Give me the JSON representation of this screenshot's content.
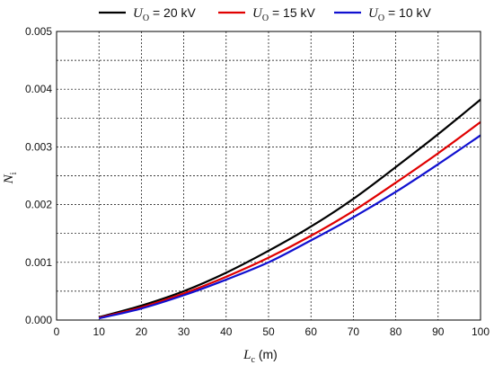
{
  "chart_data": {
    "type": "line",
    "title": "",
    "xlabel": {
      "main": "L",
      "sub": "c",
      "unit": " (m)"
    },
    "ylabel": {
      "main": "N",
      "sub": "i"
    },
    "xlim": [
      0,
      100
    ],
    "ylim": [
      0,
      0.005
    ],
    "xticks": [
      0,
      10,
      20,
      30,
      40,
      50,
      60,
      70,
      80,
      90,
      100
    ],
    "yticks": [
      0.0,
      0.001,
      0.002,
      0.003,
      0.004,
      0.005
    ],
    "ytick_labels": [
      "0.000",
      "0.001",
      "0.002",
      "0.003",
      "0.004",
      "0.005"
    ],
    "grid": true,
    "legend_position": "top",
    "x": [
      10,
      20,
      30,
      40,
      50,
      60,
      70,
      80,
      90,
      100
    ],
    "series": [
      {
        "name": "U_O = 20 kV",
        "legend_main": "U",
        "legend_sub": "O",
        "legend_rest": " = 20 kV",
        "color": "#000000",
        "values": [
          5e-05,
          0.00025,
          0.0005,
          0.00082,
          0.0012,
          0.00162,
          0.0021,
          0.00265,
          0.00322,
          0.00382
        ]
      },
      {
        "name": "U_O = 15 kV",
        "legend_main": "U",
        "legend_sub": "O",
        "legend_rest": " = 15 kV",
        "color": "#e00000",
        "values": [
          4e-05,
          0.00022,
          0.00046,
          0.00075,
          0.00108,
          0.00146,
          0.00189,
          0.00238,
          0.00289,
          0.00343
        ]
      },
      {
        "name": "U_O = 10 kV",
        "legend_main": "U",
        "legend_sub": "O",
        "legend_rest": " = 10 kV",
        "color": "#1010d0",
        "values": [
          3e-05,
          0.0002,
          0.00043,
          0.0007,
          0.001,
          0.00138,
          0.00178,
          0.00222,
          0.0027,
          0.0032
        ]
      }
    ]
  }
}
